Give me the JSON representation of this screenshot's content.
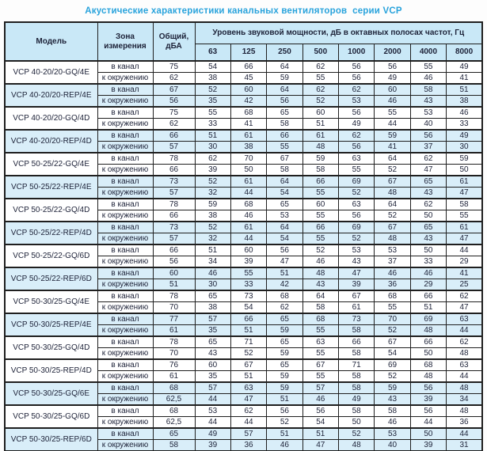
{
  "title": "Акустические характеристики канальных вентиляторов  серии VCP",
  "table": {
    "headers": {
      "model": "Модель",
      "zone": "Зона\nизмерения",
      "total": "Общий,\nдБА",
      "spl": "Уровень звуковой мощности, дБ в октавных полосах частот, Гц",
      "frequencies": [
        "63",
        "125",
        "250",
        "500",
        "1000",
        "2000",
        "4000",
        "8000"
      ]
    },
    "groups": [
      {
        "model": "VCP 40-20/20-GQ/4E",
        "highlight": false,
        "rows": [
          {
            "zone": "в канал",
            "total": "75",
            "values": [
              "54",
              "66",
              "64",
              "62",
              "56",
              "56",
              "55",
              "49"
            ]
          },
          {
            "zone": "к окружению",
            "total": "62",
            "values": [
              "38",
              "45",
              "59",
              "55",
              "56",
              "49",
              "46",
              "41"
            ]
          }
        ]
      },
      {
        "model": "VCP 40-20/20-REP/4E",
        "highlight": true,
        "rows": [
          {
            "zone": "в канал",
            "total": "67",
            "values": [
              "52",
              "60",
              "64",
              "62",
              "62",
              "60",
              "58",
              "51"
            ]
          },
          {
            "zone": "к окружению",
            "total": "56",
            "values": [
              "35",
              "42",
              "56",
              "52",
              "53",
              "46",
              "43",
              "38"
            ]
          }
        ]
      },
      {
        "model": "VCP 40-20/20-GQ/4D",
        "highlight": false,
        "rows": [
          {
            "zone": "в канал",
            "total": "75",
            "values": [
              "55",
              "68",
              "65",
              "60",
              "56",
              "55",
              "53",
              "46"
            ]
          },
          {
            "zone": "к окружению",
            "total": "62",
            "values": [
              "33",
              "41",
              "58",
              "51",
              "49",
              "44",
              "40",
              "33"
            ]
          }
        ]
      },
      {
        "model": "VCP 40-20/20-REP/4D",
        "highlight": true,
        "rows": [
          {
            "zone": "в канал",
            "total": "66",
            "values": [
              "51",
              "61",
              "66",
              "61",
              "62",
              "59",
              "56",
              "49"
            ]
          },
          {
            "zone": "к окружению",
            "total": "57",
            "values": [
              "30",
              "38",
              "55",
              "48",
              "56",
              "41",
              "37",
              "30"
            ]
          }
        ]
      },
      {
        "model": "VCP 50-25/22-GQ/4E",
        "highlight": false,
        "rows": [
          {
            "zone": "в канал",
            "total": "78",
            "values": [
              "62",
              "70",
              "67",
              "59",
              "63",
              "64",
              "62",
              "59"
            ]
          },
          {
            "zone": "к окружению",
            "total": "66",
            "values": [
              "39",
              "50",
              "58",
              "58",
              "55",
              "52",
              "47",
              "50"
            ]
          }
        ]
      },
      {
        "model": "VCP 50-25/22-REP/4E",
        "highlight": true,
        "rows": [
          {
            "zone": "в канал",
            "total": "73",
            "values": [
              "52",
              "61",
              "64",
              "66",
              "69",
              "67",
              "65",
              "61"
            ]
          },
          {
            "zone": "к окружению",
            "total": "57",
            "values": [
              "32",
              "44",
              "54",
              "55",
              "52",
              "48",
              "43",
              "47"
            ]
          }
        ]
      },
      {
        "model": "VCP 50-25/22-GQ/4D",
        "highlight": false,
        "rows": [
          {
            "zone": "в канал",
            "total": "78",
            "values": [
              "59",
              "68",
              "65",
              "60",
              "63",
              "64",
              "62",
              "58"
            ]
          },
          {
            "zone": "к окружению",
            "total": "66",
            "values": [
              "38",
              "46",
              "53",
              "55",
              "56",
              "52",
              "50",
              "55"
            ]
          }
        ]
      },
      {
        "model": "VCP 50-25/22-REP/4D",
        "highlight": true,
        "rows": [
          {
            "zone": "в канал",
            "total": "73",
            "values": [
              "52",
              "61",
              "64",
              "66",
              "69",
              "67",
              "65",
              "61"
            ]
          },
          {
            "zone": "к окружению",
            "total": "57",
            "values": [
              "32",
              "44",
              "54",
              "55",
              "52",
              "48",
              "43",
              "47"
            ]
          }
        ]
      },
      {
        "model": "VCP 50-25/22-GQ/6D",
        "highlight": false,
        "rows": [
          {
            "zone": "в канал",
            "total": "66",
            "values": [
              "51",
              "60",
              "56",
              "52",
              "53",
              "53",
              "50",
              "44"
            ]
          },
          {
            "zone": "к окружению",
            "total": "56",
            "values": [
              "34",
              "39",
              "47",
              "46",
              "43",
              "37",
              "33",
              "29"
            ]
          }
        ]
      },
      {
        "model": "VCP 50-25/22-REP/6D",
        "highlight": true,
        "rows": [
          {
            "zone": "в канал",
            "total": "60",
            "values": [
              "46",
              "55",
              "51",
              "48",
              "47",
              "46",
              "46",
              "41"
            ]
          },
          {
            "zone": "к окружению",
            "total": "51",
            "values": [
              "30",
              "33",
              "42",
              "43",
              "39",
              "36",
              "29",
              "25"
            ]
          }
        ]
      },
      {
        "model": "VCP 50-30/25-GQ/4E",
        "highlight": false,
        "rows": [
          {
            "zone": "в канал",
            "total": "78",
            "values": [
              "65",
              "73",
              "68",
              "64",
              "67",
              "68",
              "66",
              "62"
            ]
          },
          {
            "zone": "к окружению",
            "total": "70",
            "values": [
              "38",
              "54",
              "62",
              "58",
              "61",
              "55",
              "51",
              "47"
            ]
          }
        ]
      },
      {
        "model": "VCP 50-30/25-REP/4E",
        "highlight": true,
        "rows": [
          {
            "zone": "в канал",
            "total": "77",
            "values": [
              "57",
              "66",
              "65",
              "68",
              "73",
              "70",
              "69",
              "63"
            ]
          },
          {
            "zone": "к окружению",
            "total": "61",
            "values": [
              "35",
              "51",
              "59",
              "55",
              "58",
              "52",
              "48",
              "44"
            ]
          }
        ]
      },
      {
        "model": "VCP 50-30/25-GQ/4D",
        "highlight": false,
        "rows": [
          {
            "zone": "в канал",
            "total": "78",
            "values": [
              "65",
              "71",
              "65",
              "63",
              "66",
              "67",
              "66",
              "62"
            ]
          },
          {
            "zone": "к окружению",
            "total": "70",
            "values": [
              "43",
              "52",
              "59",
              "55",
              "58",
              "54",
              "50",
              "48"
            ]
          }
        ]
      },
      {
        "model": "VCP 50-30/25-REP/4D",
        "highlight": false,
        "rows": [
          {
            "zone": "в канал",
            "total": "76",
            "values": [
              "60",
              "67",
              "65",
              "67",
              "71",
              "69",
              "68",
              "63"
            ]
          },
          {
            "zone": "к окружению",
            "total": "61",
            "values": [
              "35",
              "51",
              "59",
              "55",
              "58",
              "52",
              "48",
              "44"
            ]
          }
        ]
      },
      {
        "model": "VCP 50-30/25-GQ/6E",
        "highlight": true,
        "rows": [
          {
            "zone": "в канал",
            "total": "68",
            "values": [
              "57",
              "63",
              "59",
              "57",
              "58",
              "59",
              "56",
              "48"
            ]
          },
          {
            "zone": "к окружению",
            "total": "62,5",
            "values": [
              "44",
              "47",
              "51",
              "46",
              "49",
              "43",
              "39",
              "34"
            ]
          }
        ]
      },
      {
        "model": "VCP 50-30/25-GQ/6D",
        "highlight": false,
        "rows": [
          {
            "zone": "в канал",
            "total": "68",
            "values": [
              "53",
              "62",
              "56",
              "56",
              "58",
              "58",
              "56",
              "48"
            ]
          },
          {
            "zone": "к окружению",
            "total": "62,5",
            "values": [
              "44",
              "44",
              "52",
              "54",
              "50",
              "46",
              "44",
              "36"
            ]
          }
        ]
      },
      {
        "model": "VCP 50-30/25-REP/6D",
        "highlight": true,
        "rows": [
          {
            "zone": "в канал",
            "total": "65",
            "values": [
              "49",
              "57",
              "51",
              "51",
              "52",
              "53",
              "50",
              "44"
            ]
          },
          {
            "zone": "к окружению",
            "total": "58",
            "values": [
              "39",
              "36",
              "46",
              "47",
              "48",
              "40",
              "39",
              "31"
            ]
          }
        ]
      }
    ]
  },
  "colors": {
    "title": "#29a3dc",
    "header_bg": "#c9e8f7",
    "highlight_row_bg": "#d9eef9",
    "border": "#1f1f1f",
    "text": "#1d2238"
  }
}
